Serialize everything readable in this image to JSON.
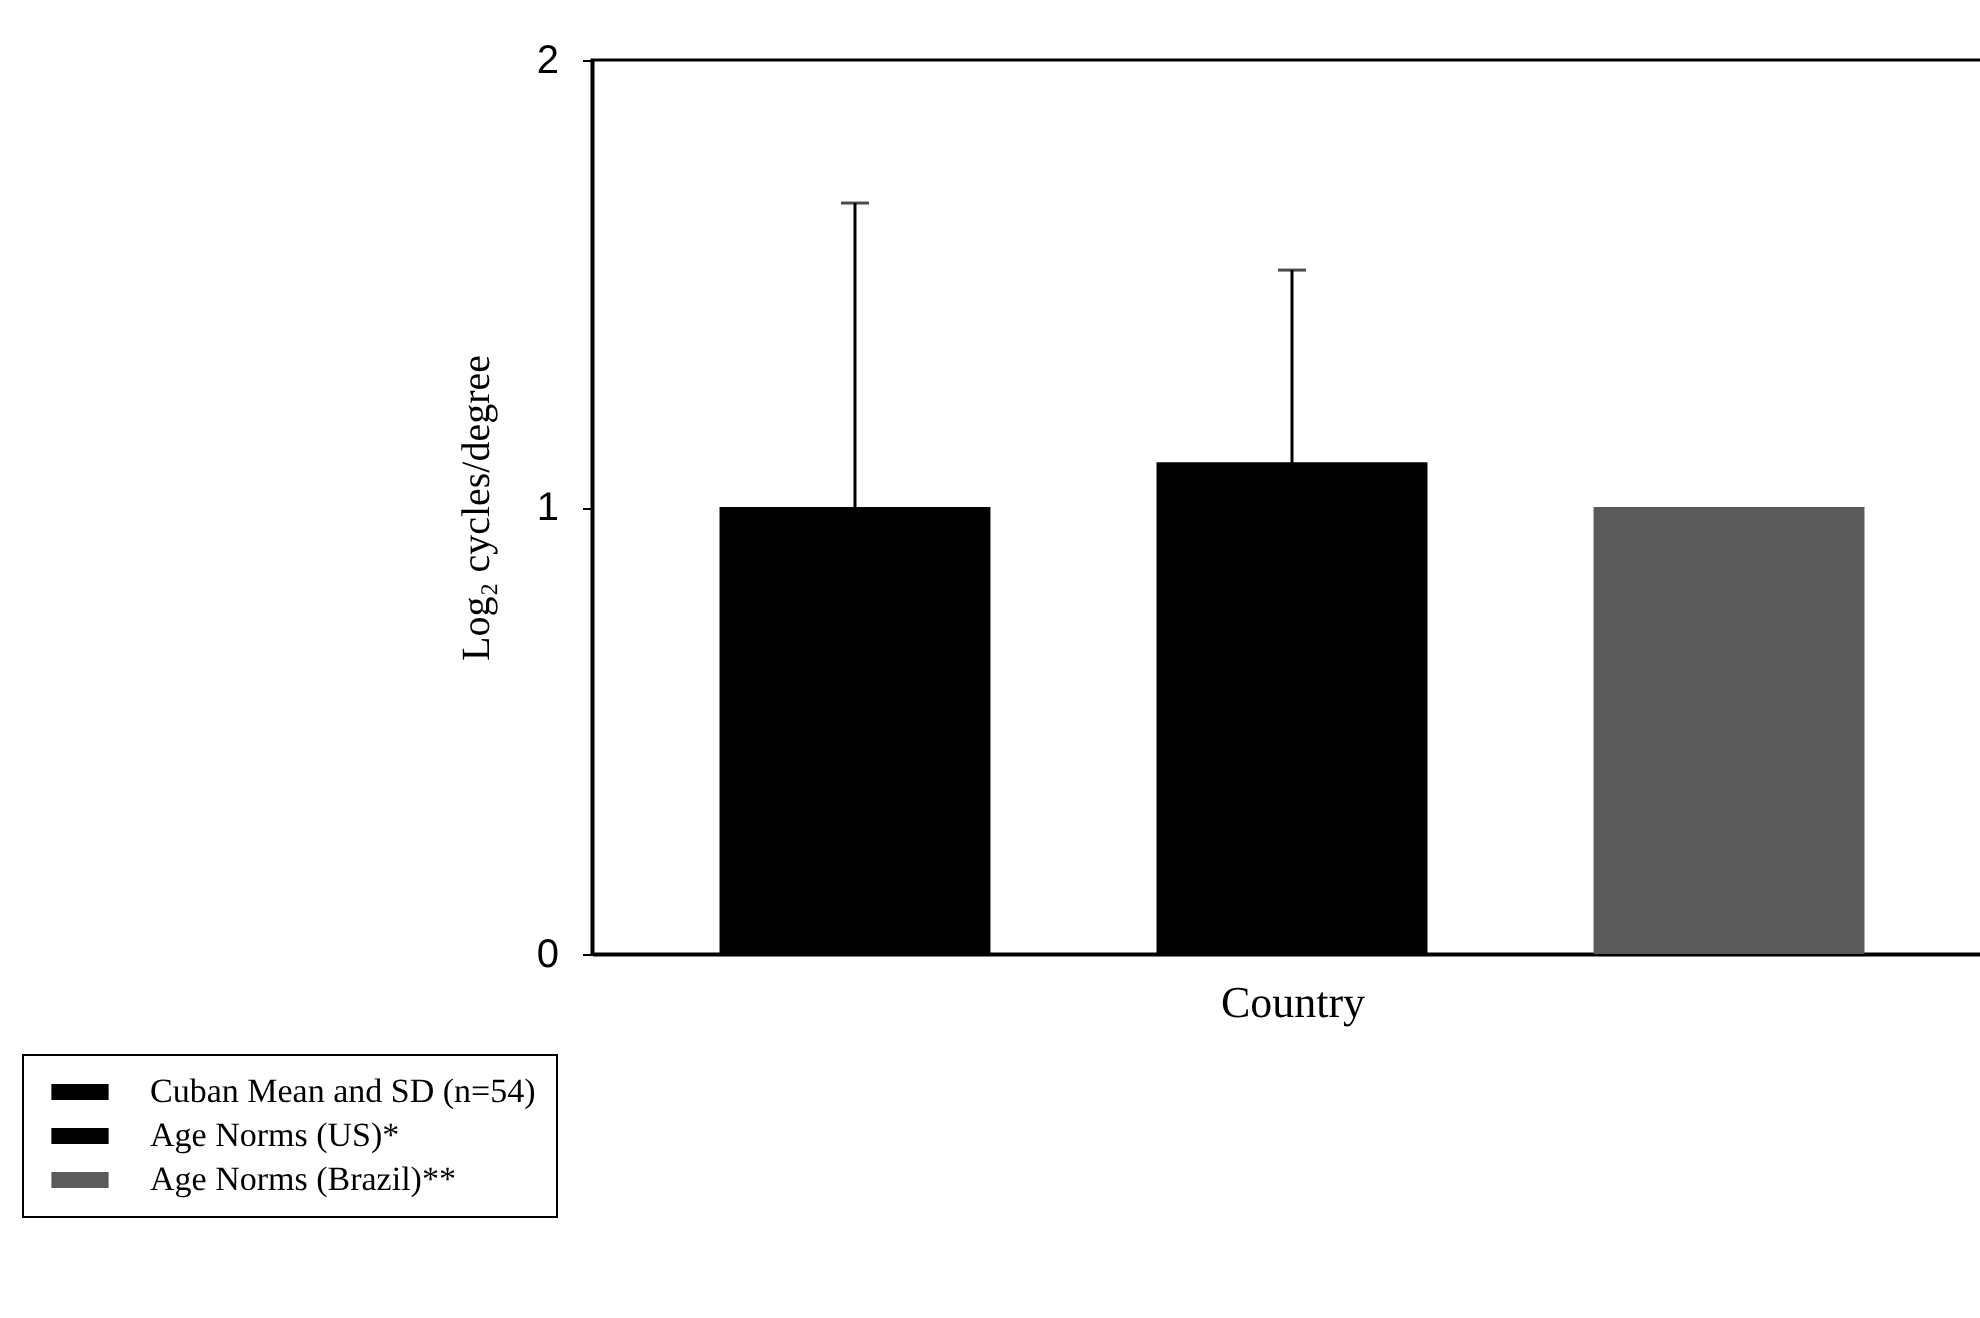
{
  "chart_data": {
    "type": "bar",
    "xlabel": "Country",
    "ylabel": "Log₂ cycles/degree",
    "categories": [
      null
    ],
    "series": [
      {
        "name": "Cuban Mean and SD (n=54)",
        "color": "#000000",
        "values": [
          1.0
        ],
        "errors": [
          0.68
        ]
      },
      {
        "name": "Age Norms (US)*",
        "color": "#000000",
        "values": [
          1.1
        ],
        "errors": [
          0.43
        ]
      },
      {
        "name": "Age Norms (Brazil)**",
        "color": "#5a5a5a",
        "values": [
          1.0
        ]
      }
    ],
    "ylim": [
      0,
      2
    ],
    "yticks": [
      0,
      1,
      2
    ],
    "grid": false,
    "legend": "bottom left"
  }
}
